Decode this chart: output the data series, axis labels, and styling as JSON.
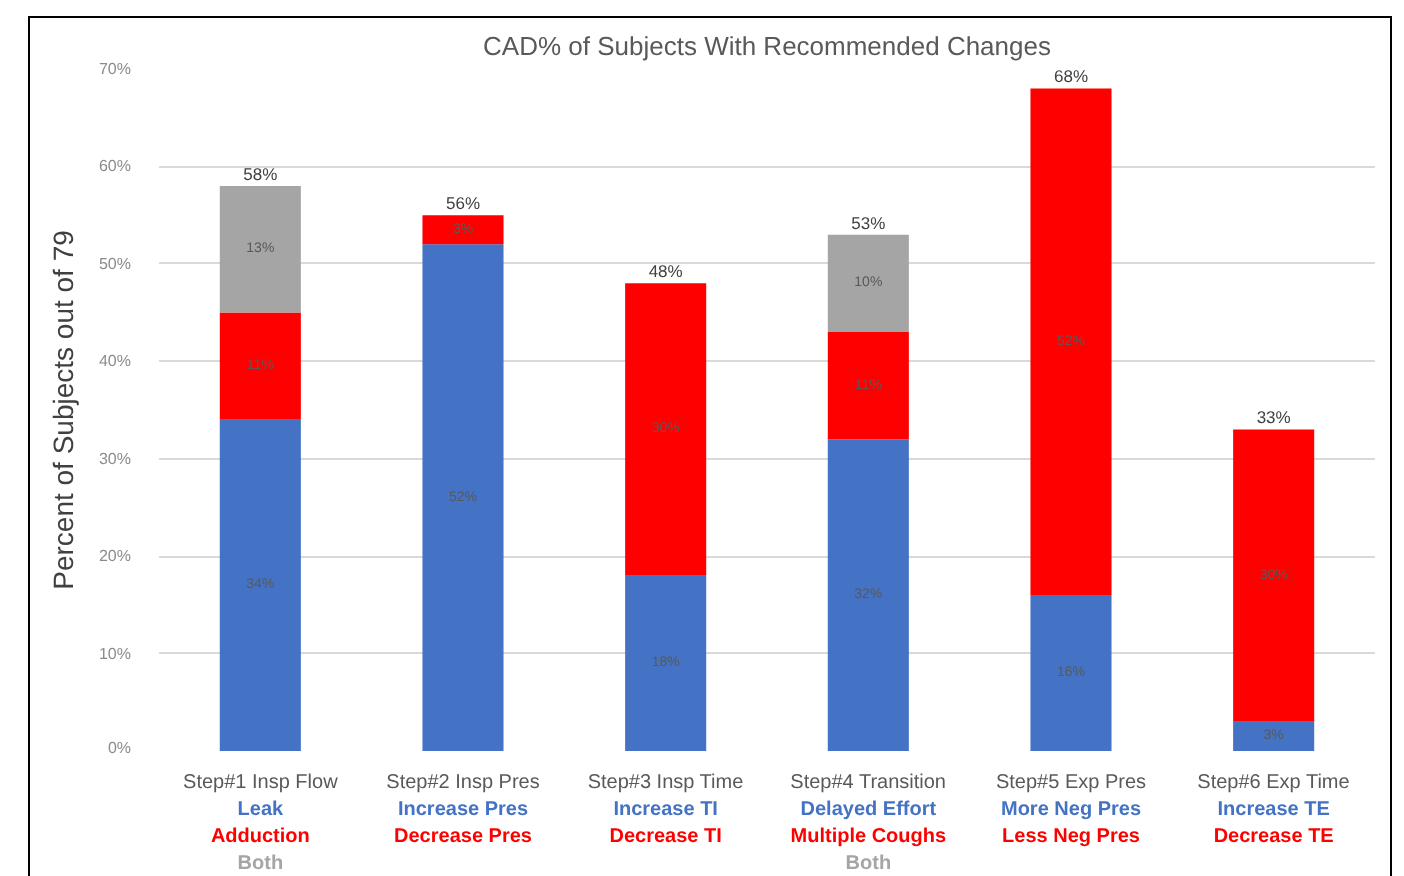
{
  "chart_data": {
    "type": "bar",
    "title": "CAD% of Subjects With Recommended Changes",
    "ylabel": "Percent of Subjects out of 79",
    "categories": [
      "Step#1 Insp Flow\nLeak\nAdduction\nBoth",
      "Step#2 Insp Pres\nIncrease Pres\nDecrease Pres",
      "Step#3 Insp Time\nIncrease TI\nDecrease TI",
      "Step#4 Transition\nDelayed Effort\nMultiple Coughs\nBoth",
      "Step#5 Exp Pres\nMore Neg Pres\nLess Neg Pres",
      "Step#6 Exp Time\nIncrease TE\nDecrease TE"
    ],
    "stacked": true,
    "series": [
      {
        "color": "#4472c4",
        "values": [
          34,
          52,
          18,
          32,
          16,
          3
        ],
        "value_labels": [
          "34%",
          "52%",
          "18%",
          "32%",
          "16%",
          "3%"
        ]
      },
      {
        "color": "#ff0000",
        "values": [
          11,
          3,
          30,
          11,
          52,
          30
        ],
        "value_labels": [
          "11%",
          "3%",
          "30%",
          "11%",
          "52%",
          "30%"
        ]
      },
      {
        "color": "#a5a5a5",
        "values": [
          13,
          null,
          null,
          10,
          null,
          null
        ],
        "value_labels": [
          "13%",
          null,
          null,
          "10%",
          null,
          null
        ]
      }
    ],
    "totals": [
      "58%",
      "56%",
      "48%",
      "53%",
      "68%",
      "33%"
    ],
    "ylim": [
      0,
      70
    ],
    "yticks": [
      {
        "value": 0,
        "label": "0%"
      },
      {
        "value": 10,
        "label": "10%"
      },
      {
        "value": 20,
        "label": "20%"
      },
      {
        "value": 30,
        "label": "30%"
      },
      {
        "value": 40,
        "label": "40%"
      },
      {
        "value": 50,
        "label": "50%"
      },
      {
        "value": 60,
        "label": "60%"
      },
      {
        "value": 70,
        "label": "70%"
      }
    ],
    "grid": "y"
  }
}
